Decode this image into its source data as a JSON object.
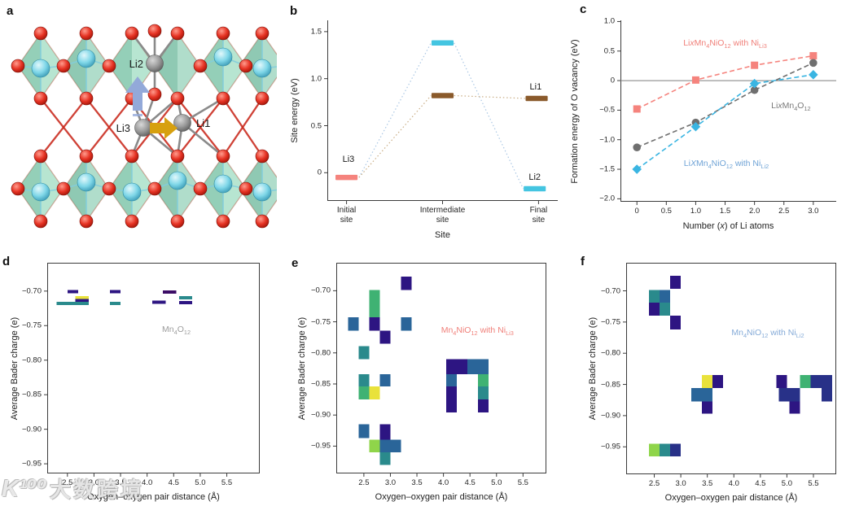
{
  "letters": {
    "a": "a",
    "b": "b",
    "c": "c",
    "d": "d",
    "e": "e",
    "f": "f"
  },
  "watermark": {
    "logo": "K¹⁰⁰",
    "text": "大数跨境"
  },
  "panel_a": {
    "labels": {
      "li1": "Li1",
      "li2": "Li2",
      "li3": "Li3"
    },
    "colors": {
      "oxygen": "#d32416",
      "transition_metal": "#7fd7e8",
      "lithium": "#969696",
      "polyhedra": "#6ec29a",
      "bond_red": "#c9281c",
      "bond_gray": "#8a8a8a",
      "up_arrow": "#93a9d9",
      "right_arrow": "#d7a00f"
    }
  },
  "palette": {
    "navy": "#2d1582",
    "purple": "#3c0d66",
    "darkblue": "#283188",
    "blue": "#2a6599",
    "teal": "#2a8a8c",
    "green": "#3fb273",
    "lightgreen": "#8fd54a",
    "yellow": "#e9e23b"
  },
  "chart_data": {
    "b": {
      "type": "line",
      "xlabel": "Site",
      "ylabel": "Site energy (eV)",
      "xlim": [
        0.8,
        3.2
      ],
      "ylim": [
        -0.3,
        1.62
      ],
      "box": false,
      "xlabel_dy": 36,
      "ylabel_dx": -40,
      "xticks": [
        {
          "v": 1,
          "label": "Initial\nsite"
        },
        {
          "v": 2,
          "label": "Intermediate\nsite"
        },
        {
          "v": 3,
          "label": "Final\nsite"
        }
      ],
      "yticks": [
        {
          "v": 0,
          "label": "0"
        },
        {
          "v": 0.5,
          "label": "0.5"
        },
        {
          "v": 1,
          "label": "1.0"
        },
        {
          "v": 1.5,
          "label": "1.5"
        }
      ],
      "bars": [
        {
          "x": 1.0,
          "y": -0.05,
          "halfw": 0.115,
          "color": "#f5837d"
        },
        {
          "x": 2.0,
          "y": 1.38,
          "halfw": 0.115,
          "color": "#44c5e1"
        },
        {
          "x": 2.0,
          "y": 0.82,
          "halfw": 0.115,
          "color": "#8a5a2b"
        },
        {
          "x": 2.98,
          "y": 0.79,
          "halfw": 0.115,
          "color": "#8a5a2b"
        },
        {
          "x": 2.96,
          "y": -0.17,
          "halfw": 0.115,
          "color": "#44c5e1"
        }
      ],
      "paths": [
        {
          "color": "#aac7e4",
          "segs": [
            [
              [
                1.13,
                -0.05
              ],
              [
                1.88,
                1.38
              ]
            ],
            [
              [
                2.12,
                1.38
              ],
              [
                2.84,
                -0.17
              ]
            ]
          ]
        },
        {
          "color": "#c9ad85",
          "segs": [
            [
              [
                1.13,
                -0.05
              ],
              [
                1.88,
                0.82
              ]
            ],
            [
              [
                2.12,
                0.82
              ],
              [
                2.86,
                0.79
              ]
            ]
          ]
        }
      ],
      "annotations": [
        {
          "text": "Li3",
          "x": 1.02,
          "y": 0.14,
          "color": "#1a1a1a",
          "size": 11
        },
        {
          "text": "Li1",
          "x": 2.97,
          "y": 0.91,
          "color": "#1a1a1a",
          "size": 11
        },
        {
          "text": "Li2",
          "x": 2.96,
          "y": -0.05,
          "color": "#1a1a1a",
          "size": 11
        }
      ]
    },
    "c": {
      "type": "line",
      "xlabel": "Number (*x*) of Li atoms",
      "ylabel": "Formation energy of O vacancy (eV)",
      "xlim": [
        -0.28,
        3.39
      ],
      "ylim": [
        -2.05,
        1.02
      ],
      "box": false,
      "zeroline": 0,
      "xlabel_dy": 24,
      "ylabel_dx": -56,
      "xticks": [
        {
          "v": 0,
          "label": "0"
        },
        {
          "v": 0.5,
          "label": "0.5"
        },
        {
          "v": 1,
          "label": "1.0"
        },
        {
          "v": 1.5,
          "label": "1.5"
        },
        {
          "v": 2,
          "label": "2.0"
        },
        {
          "v": 2.5,
          "label": "2.5"
        },
        {
          "v": 3,
          "label": "3.0"
        }
      ],
      "yticks": [
        {
          "v": 1,
          "label": "1.0"
        },
        {
          "v": 0.5,
          "label": "0.5"
        },
        {
          "v": 0,
          "label": "0"
        },
        {
          "v": -0.5,
          "label": "−0.5"
        },
        {
          "v": -1,
          "label": "−1.0"
        },
        {
          "v": -1.5,
          "label": "−1.5"
        },
        {
          "v": -2,
          "label": "−2.0"
        }
      ],
      "x": [
        0,
        1,
        2,
        3
      ],
      "series": [
        {
          "name": "Li*x*Mn~4~NiO~12~ with Ni~Li3~",
          "marker": "square",
          "color": "#f5837d",
          "values": [
            -0.48,
            0.01,
            0.26,
            0.42
          ]
        },
        {
          "name": "Li*x*Mn~4~O~12~",
          "marker": "circle",
          "color": "#6f6f6f",
          "values": [
            -1.13,
            -0.71,
            -0.16,
            0.3
          ]
        },
        {
          "name": "Li*X*Mn~4~NiO~12~ with Ni~Li2~",
          "marker": "diamond",
          "color": "#3ab5e2",
          "values": [
            -1.5,
            -0.78,
            -0.05,
            0.1
          ]
        }
      ],
      "annotations": [
        {
          "text": "Li*x*Mn~4~NiO~12~ with Ni~Li3~",
          "x": 1.5,
          "y": 0.62,
          "color": "#f0807a"
        },
        {
          "text": "Li*x*Mn~4~O~12~",
          "x": 2.62,
          "y": -0.44,
          "color": "#7a7a7a"
        },
        {
          "text": "Li*X*Mn~4~NiO~12~ with Ni~Li2~",
          "x": 1.52,
          "y": -1.42,
          "color": "#6fa3d6"
        }
      ]
    },
    "d": {
      "type": "heatmap",
      "xlabel": "Oxygen–oxygen pair distance (Å)",
      "ylabel": "Average Bader charge (e)",
      "xlim": [
        2.12,
        6.12
      ],
      "ylim": [
        -0.964,
        -0.659
      ],
      "box": true,
      "xlabel_dy": 23,
      "ylabel_dx": -40,
      "xticks": [
        {
          "v": 2.5,
          "label": "2.5"
        },
        {
          "v": 3,
          "label": "3.0"
        },
        {
          "v": 3.5,
          "label": "3.5"
        },
        {
          "v": 4,
          "label": "4.0"
        },
        {
          "v": 4.5,
          "label": "4.5"
        },
        {
          "v": 5,
          "label": "5.0"
        },
        {
          "v": 5.5,
          "label": "5.5"
        }
      ],
      "yticks": [
        {
          "v": -0.7,
          "label": "−0.70"
        },
        {
          "v": -0.75,
          "label": "−0.75"
        },
        {
          "v": -0.8,
          "label": "−0.80"
        },
        {
          "v": -0.85,
          "label": "−0.85"
        },
        {
          "v": -0.9,
          "label": "−0.90"
        },
        {
          "v": -0.95,
          "label": "−0.95"
        }
      ],
      "annotations": [
        {
          "text": "Mn~4~O~12~",
          "x": 4.55,
          "y": -0.757,
          "color": "#9c9c9c"
        }
      ],
      "cells": [
        [
          2.5,
          2.7,
          -0.6985,
          -0.703,
          "navy"
        ],
        [
          2.65,
          2.9,
          -0.707,
          -0.7115,
          "yellow"
        ],
        [
          2.65,
          2.9,
          -0.7115,
          -0.7155,
          "navy"
        ],
        [
          2.3,
          2.9,
          -0.7155,
          -0.72,
          "teal"
        ],
        [
          3.3,
          3.5,
          -0.6985,
          -0.703,
          "navy"
        ],
        [
          3.3,
          3.5,
          -0.7155,
          -0.72,
          "teal"
        ],
        [
          4.1,
          4.35,
          -0.714,
          -0.7185,
          "navy"
        ],
        [
          4.3,
          4.55,
          -0.699,
          -0.7035,
          "purple"
        ],
        [
          4.6,
          4.85,
          -0.7075,
          -0.712,
          "teal"
        ],
        [
          4.6,
          4.85,
          -0.7145,
          -0.719,
          "navy"
        ]
      ]
    },
    "e": {
      "type": "heatmap",
      "xlabel": "Oxygen–oxygen pair distance (Å)",
      "ylabel": "Average Bader charge (e)",
      "xlim": [
        1.98,
        5.94
      ],
      "ylim": [
        -0.994,
        -0.655
      ],
      "box": true,
      "xlabel_dy": 23,
      "ylabel_dx": -42,
      "xticks": [
        {
          "v": 2.5,
          "label": "2.5"
        },
        {
          "v": 3,
          "label": "3.0"
        },
        {
          "v": 3.5,
          "label": "3.5"
        },
        {
          "v": 4,
          "label": "4.0"
        },
        {
          "v": 4.5,
          "label": "4.5"
        },
        {
          "v": 5,
          "label": "5.0"
        },
        {
          "v": 5.5,
          "label": "5.5"
        }
      ],
      "yticks": [
        {
          "v": -0.7,
          "label": "−0.70"
        },
        {
          "v": -0.75,
          "label": "−0.75"
        },
        {
          "v": -0.8,
          "label": "−0.80"
        },
        {
          "v": -0.85,
          "label": "−0.85"
        },
        {
          "v": -0.9,
          "label": "−0.90"
        },
        {
          "v": -0.95,
          "label": "−0.95"
        }
      ],
      "annotations": [
        {
          "text": "Mn~4~NiO~12~ with Ni~Li3~",
          "x": 4.64,
          "y": -0.765,
          "color": "#f0807a"
        }
      ],
      "cells": [
        [
          3.2,
          3.4,
          -0.677,
          -0.699,
          "navy"
        ],
        [
          2.6,
          2.8,
          -0.699,
          -0.743,
          "green"
        ],
        [
          2.2,
          2.4,
          -0.743,
          -0.764,
          "blue"
        ],
        [
          2.6,
          2.8,
          -0.743,
          -0.764,
          "navy"
        ],
        [
          3.2,
          3.4,
          -0.743,
          -0.764,
          "blue"
        ],
        [
          2.8,
          3.0,
          -0.764,
          -0.785,
          "navy"
        ],
        [
          2.4,
          2.6,
          -0.789,
          -0.81,
          "teal"
        ],
        [
          2.4,
          2.6,
          -0.834,
          -0.854,
          "teal"
        ],
        [
          2.8,
          3.0,
          -0.834,
          -0.854,
          "blue"
        ],
        [
          2.4,
          2.6,
          -0.854,
          -0.875,
          "green"
        ],
        [
          2.6,
          2.8,
          -0.854,
          -0.875,
          "yellow"
        ],
        [
          4.05,
          4.45,
          -0.81,
          -0.834,
          "navy"
        ],
        [
          4.45,
          4.85,
          -0.81,
          -0.834,
          "blue"
        ],
        [
          4.05,
          4.25,
          -0.834,
          -0.854,
          "blue"
        ],
        [
          4.65,
          4.85,
          -0.834,
          -0.854,
          "green"
        ],
        [
          4.05,
          4.25,
          -0.854,
          -0.896,
          "navy"
        ],
        [
          4.65,
          4.85,
          -0.854,
          -0.875,
          "teal"
        ],
        [
          4.65,
          4.85,
          -0.875,
          -0.896,
          "navy"
        ],
        [
          2.4,
          2.6,
          -0.915,
          -0.937,
          "blue"
        ],
        [
          2.8,
          3.0,
          -0.915,
          -0.94,
          "navy"
        ],
        [
          2.6,
          2.8,
          -0.94,
          -0.96,
          "lightgreen"
        ],
        [
          2.8,
          3.2,
          -0.94,
          -0.96,
          "blue"
        ],
        [
          2.8,
          3.0,
          -0.96,
          -0.98,
          "teal"
        ]
      ]
    },
    "f": {
      "type": "heatmap",
      "xlabel": "Oxygen–oxygen pair distance (Å)",
      "ylabel": "Average Bader charge (e)",
      "xlim": [
        1.97,
        5.93
      ],
      "ylim": [
        -0.994,
        -0.655
      ],
      "box": true,
      "xlabel_dy": 23,
      "ylabel_dx": -41,
      "xticks": [
        {
          "v": 2.5,
          "label": "2.5"
        },
        {
          "v": 3,
          "label": "3.0"
        },
        {
          "v": 3.5,
          "label": "3.5"
        },
        {
          "v": 4,
          "label": "4.0"
        },
        {
          "v": 4.5,
          "label": "4.5"
        },
        {
          "v": 5,
          "label": "5.0"
        },
        {
          "v": 5.5,
          "label": "5.5"
        }
      ],
      "yticks": [
        {
          "v": -0.7,
          "label": "−0.70"
        },
        {
          "v": -0.75,
          "label": "−0.75"
        },
        {
          "v": -0.8,
          "label": "−0.80"
        },
        {
          "v": -0.85,
          "label": "−0.85"
        },
        {
          "v": -0.9,
          "label": "−0.90"
        },
        {
          "v": -0.95,
          "label": "−0.95"
        }
      ],
      "annotations": [
        {
          "text": "Mn~4~NiO~12~ with Ni~Li2~",
          "x": 4.64,
          "y": -0.768,
          "color": "#85abd8"
        }
      ],
      "cells": [
        [
          2.8,
          3.0,
          -0.676,
          -0.697,
          "navy"
        ],
        [
          2.4,
          2.6,
          -0.699,
          -0.719,
          "teal"
        ],
        [
          2.6,
          2.8,
          -0.699,
          -0.719,
          "blue"
        ],
        [
          2.4,
          2.6,
          -0.719,
          -0.74,
          "navy"
        ],
        [
          2.6,
          2.8,
          -0.719,
          -0.74,
          "teal"
        ],
        [
          2.8,
          3.0,
          -0.74,
          -0.762,
          "navy"
        ],
        [
          3.4,
          3.6,
          -0.835,
          -0.856,
          "yellow"
        ],
        [
          3.6,
          3.8,
          -0.835,
          -0.856,
          "navy"
        ],
        [
          3.2,
          3.6,
          -0.856,
          -0.877,
          "blue"
        ],
        [
          3.4,
          3.6,
          -0.877,
          -0.897,
          "navy"
        ],
        [
          4.8,
          5.0,
          -0.835,
          -0.856,
          "navy"
        ],
        [
          5.25,
          5.45,
          -0.835,
          -0.856,
          "green"
        ],
        [
          5.45,
          5.85,
          -0.835,
          -0.856,
          "darkblue"
        ],
        [
          4.85,
          5.25,
          -0.856,
          -0.877,
          "darkblue"
        ],
        [
          5.65,
          5.85,
          -0.856,
          -0.877,
          "darkblue"
        ],
        [
          5.05,
          5.25,
          -0.877,
          -0.897,
          "navy"
        ],
        [
          2.4,
          2.6,
          -0.945,
          -0.965,
          "lightgreen"
        ],
        [
          2.6,
          2.8,
          -0.945,
          -0.965,
          "teal"
        ],
        [
          2.8,
          3.0,
          -0.945,
          -0.965,
          "darkblue"
        ]
      ]
    }
  }
}
